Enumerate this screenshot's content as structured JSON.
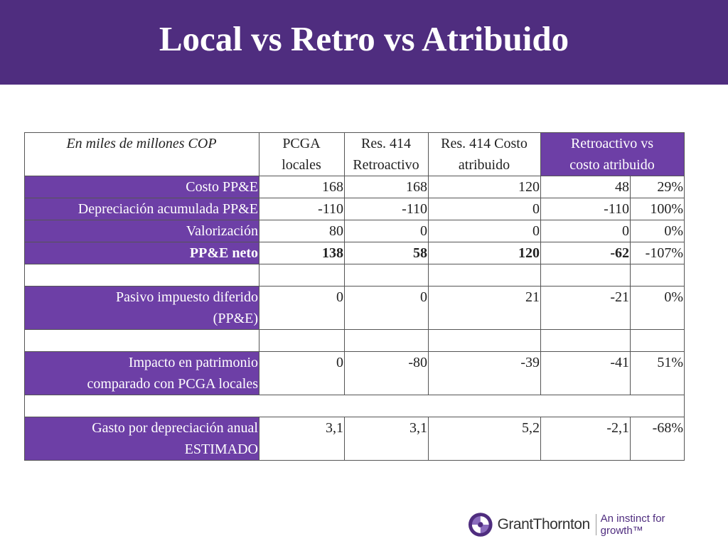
{
  "slide": {
    "title": "Local vs Retro vs Atribuido"
  },
  "table": {
    "header": {
      "unit_label": "En miles de millones COP",
      "col1_line1": "PCGA",
      "col1_line2": "locales",
      "col2_line1": "Res. 414",
      "col2_line2": "Retroactivo",
      "col3_line1": "Res. 414 Costo",
      "col3_line2": "atribuido",
      "col4_line1": "Retroactivo vs",
      "col4_line2": "costo atribuido"
    },
    "rows": {
      "costo": {
        "label": "Costo PP&E",
        "c1": "168",
        "c2": "168",
        "c3": "120",
        "c4": "48",
        "c5": "29%"
      },
      "depreciacion": {
        "label": "Depreciación acumulada PP&E",
        "c1": "-110",
        "c2": "-110",
        "c3": "0",
        "c4": "-110",
        "c5": "100%"
      },
      "valorizacion": {
        "label": "Valorización",
        "c1": "80",
        "c2": "0",
        "c3": "0",
        "c4": "0",
        "c5": "0%"
      },
      "neto": {
        "label": "PP&E neto",
        "c1": "138",
        "c2": "58",
        "c3": "120",
        "c4": "-62",
        "c5": "-107%"
      },
      "pasivo": {
        "label_line1": "Pasivo impuesto diferido",
        "label_line2": "(PP&E)",
        "c1": "0",
        "c2": "0",
        "c3": "21",
        "c4": "-21",
        "c5": "0%"
      },
      "impacto": {
        "label_line1": "Impacto en patrimonio",
        "label_line2": "comparado con PCGA locales",
        "c1": "0",
        "c2": "-80",
        "c3": "-39",
        "c4": "-41",
        "c5": "51%"
      },
      "gasto": {
        "label_line1": "Gasto por depreciación anual",
        "label_line2": "ESTIMADO",
        "c1": "3,1",
        "c2": "3,1",
        "c3": "5,2",
        "c4": "-2,1",
        "c5": "-68%"
      }
    }
  },
  "logo": {
    "name": "GrantThornton",
    "tagline": "An instinct for growth™"
  },
  "colors": {
    "banner": "#4f2d7f",
    "label_fill": "#6d3fa6"
  }
}
